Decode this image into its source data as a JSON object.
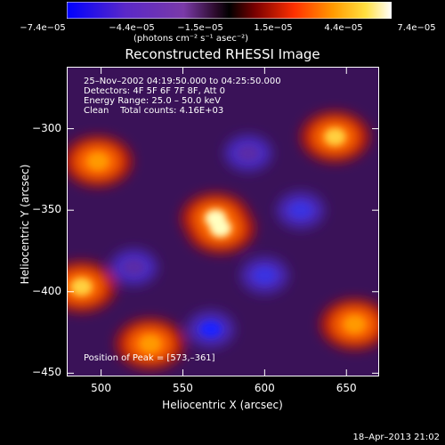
{
  "colorbar": {
    "ticks": [
      "−7.4e−05",
      "−4.4e−05",
      "−1.5e−05",
      "1.5e−05",
      "4.4e−05",
      "7.4e−05"
    ],
    "units": "(photons cm⁻² s⁻¹ asec⁻²)",
    "min": -7.4e-05,
    "max": 7.4e-05
  },
  "title": "Reconstructed RHESSI Image",
  "info": {
    "time_range": "25–Nov–2002 04:19:50.000 to 04:25:50.000",
    "detectors": "Detectors: 4F 5F 6F 7F 8F, Att 0",
    "energy": "Energy Range: 25.0 – 50.0 keV",
    "clean": "Clean    Total counts: 4.16E+03",
    "peak": "Position of Peak = [573,–361]"
  },
  "axes": {
    "xlabel": "Heliocentric X (arcsec)",
    "ylabel": "Heliocentric Y (arcsec)",
    "xticks": [
      "500",
      "550",
      "600",
      "650"
    ],
    "yticks": [
      "−300",
      "−350",
      "−400",
      "−450"
    ]
  },
  "footer": "18–Apr–2013 21:02",
  "chart_data": {
    "type": "heatmap",
    "title": "Reconstructed RHESSI Image",
    "xlabel": "Heliocentric X (arcsec)",
    "ylabel": "Heliocentric Y (arcsec)",
    "xlim": [
      479,
      670
    ],
    "ylim": [
      -452,
      -262
    ],
    "color_range": [
      -7.4e-05,
      7.4e-05
    ],
    "colormap": "blue-purple-red-yellow-white (RHESSI)",
    "peak_position": [
      573,
      -361
    ],
    "bright_sources": [
      {
        "x": 573,
        "y": -361,
        "level": 7.4e-05
      },
      {
        "x": 643,
        "y": -305,
        "level": 6.5e-05
      },
      {
        "x": 488,
        "y": -397,
        "level": 6e-05
      },
      {
        "x": 570,
        "y": -355,
        "level": 6.8e-05
      },
      {
        "x": 530,
        "y": -432,
        "level": 5.5e-05
      },
      {
        "x": 655,
        "y": -420,
        "level": 5e-05
      },
      {
        "x": 498,
        "y": -320,
        "level": 4.5e-05
      }
    ],
    "dim_sources": [
      {
        "x": 567,
        "y": -423,
        "level": -7e-05
      },
      {
        "x": 622,
        "y": -350,
        "level": -6e-05
      },
      {
        "x": 600,
        "y": -390,
        "level": -5e-05
      },
      {
        "x": 520,
        "y": -385,
        "level": -4.5e-05
      },
      {
        "x": 590,
        "y": -315,
        "level": -4e-05
      }
    ]
  }
}
